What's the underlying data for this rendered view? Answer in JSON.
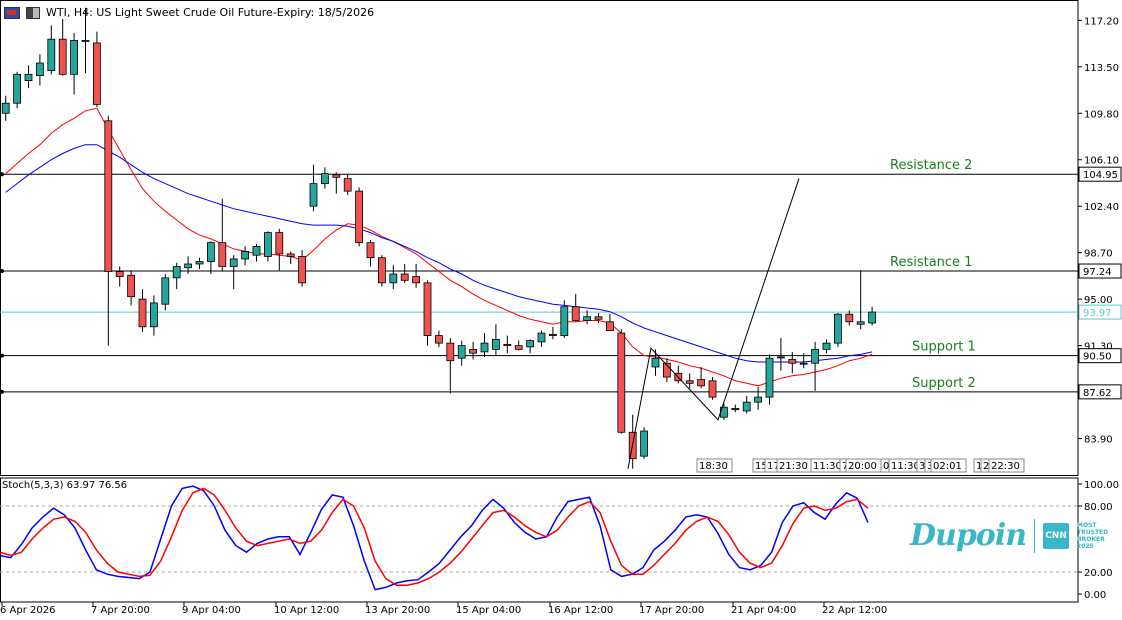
{
  "header": {
    "symbol_title": "WTI, H4:  US Light Sweet Crude Oil Future-Expiry: 18/5/2026"
  },
  "indicator": {
    "stoch_label": "Stoch(5,3,3) 63.97 76.56"
  },
  "brand": {
    "logo_text": "Dupoin",
    "badge_icon": "CNN",
    "badge_lines": [
      "MOST",
      "TRUSTED",
      "BROKER",
      "2025"
    ]
  },
  "colors": {
    "bull": "#26a69a",
    "bear": "#ef5350",
    "ema_fast": "#ff0000",
    "ema_slow": "#0000ff",
    "stoch_k": "#0000ff",
    "stoch_d": "#ff0000",
    "level_label": "#1a7f1a",
    "price_line": "#5fc7d3"
  },
  "chart_data": [
    {
      "type": "candlestick",
      "ylim": [
        81.0,
        118.5
      ],
      "y_ticks": [
        117.2,
        113.5,
        109.8,
        106.1,
        102.4,
        98.7,
        95.0,
        91.3,
        83.9
      ],
      "x_tick_labels": [
        "6 Apr 2026",
        "7 Apr 20:00",
        "9 Apr 04:00",
        "10 Apr 12:00",
        "13 Apr 20:00",
        "15 Apr 04:00",
        "16 Apr 12:00",
        "17 Apr 20:00",
        "21 Apr 04:00",
        "22 Apr 12:00"
      ],
      "current_price": 93.97,
      "levels": [
        {
          "name": "Resistance 2",
          "value": 104.95
        },
        {
          "name": "Resistance 1",
          "value": 97.24
        },
        {
          "name": "Support 1",
          "value": 90.5
        },
        {
          "name": "Support 2",
          "value": 87.62
        }
      ],
      "time_markers": [
        "18:30",
        "15",
        "17",
        "21:30",
        "11:30",
        "7",
        "20:00",
        "0",
        "11:30",
        "3",
        "3",
        "02:01",
        "1",
        "2",
        "22:30"
      ],
      "candles": [
        {
          "o": 109.8,
          "h": 111.2,
          "l": 109.2,
          "c": 110.6
        },
        {
          "o": 110.6,
          "h": 113.1,
          "l": 110.2,
          "c": 112.9
        },
        {
          "o": 112.4,
          "h": 113.6,
          "l": 111.8,
          "c": 112.9
        },
        {
          "o": 112.8,
          "h": 114.5,
          "l": 112.0,
          "c": 113.8
        },
        {
          "o": 113.2,
          "h": 116.8,
          "l": 112.9,
          "c": 115.7
        },
        {
          "o": 115.7,
          "h": 117.3,
          "l": 112.8,
          "c": 112.9
        },
        {
          "o": 112.9,
          "h": 116.2,
          "l": 111.3,
          "c": 115.6
        },
        {
          "o": 115.6,
          "h": 118.2,
          "l": 113.0,
          "c": 115.6
        },
        {
          "o": 115.4,
          "h": 116.3,
          "l": 110.3,
          "c": 110.5
        },
        {
          "o": 109.2,
          "h": 109.6,
          "l": 91.3,
          "c": 97.2
        },
        {
          "o": 97.2,
          "h": 97.6,
          "l": 96.0,
          "c": 96.8
        },
        {
          "o": 96.9,
          "h": 97.3,
          "l": 94.5,
          "c": 95.2
        },
        {
          "o": 95.0,
          "h": 95.8,
          "l": 92.4,
          "c": 92.8
        },
        {
          "o": 92.8,
          "h": 95.3,
          "l": 92.1,
          "c": 94.7
        },
        {
          "o": 94.6,
          "h": 97.0,
          "l": 94.1,
          "c": 96.7
        },
        {
          "o": 96.7,
          "h": 97.9,
          "l": 95.8,
          "c": 97.6
        },
        {
          "o": 97.5,
          "h": 98.4,
          "l": 97.0,
          "c": 97.8
        },
        {
          "o": 97.8,
          "h": 98.3,
          "l": 97.4,
          "c": 98.0
        },
        {
          "o": 98.0,
          "h": 99.6,
          "l": 97.0,
          "c": 99.5
        },
        {
          "o": 99.5,
          "h": 103.0,
          "l": 97.2,
          "c": 97.6
        },
        {
          "o": 97.6,
          "h": 98.5,
          "l": 95.8,
          "c": 98.2
        },
        {
          "o": 98.2,
          "h": 99.2,
          "l": 97.7,
          "c": 98.8
        },
        {
          "o": 98.5,
          "h": 99.4,
          "l": 98.0,
          "c": 99.2
        },
        {
          "o": 98.4,
          "h": 100.4,
          "l": 98.0,
          "c": 100.3
        },
        {
          "o": 100.3,
          "h": 100.6,
          "l": 97.3,
          "c": 98.6
        },
        {
          "o": 98.6,
          "h": 98.8,
          "l": 97.8,
          "c": 98.4
        },
        {
          "o": 98.4,
          "h": 98.9,
          "l": 96.0,
          "c": 96.3
        },
        {
          "o": 102.4,
          "h": 105.7,
          "l": 102.0,
          "c": 104.2
        },
        {
          "o": 104.2,
          "h": 105.5,
          "l": 103.8,
          "c": 105.0
        },
        {
          "o": 104.9,
          "h": 105.1,
          "l": 103.4,
          "c": 104.7
        },
        {
          "o": 104.6,
          "h": 104.9,
          "l": 103.3,
          "c": 103.6
        },
        {
          "o": 103.6,
          "h": 103.9,
          "l": 99.2,
          "c": 99.5
        },
        {
          "o": 99.5,
          "h": 99.7,
          "l": 97.6,
          "c": 98.3
        },
        {
          "o": 98.3,
          "h": 98.5,
          "l": 96.0,
          "c": 96.3
        },
        {
          "o": 96.3,
          "h": 97.7,
          "l": 95.8,
          "c": 97.0
        },
        {
          "o": 97.0,
          "h": 97.8,
          "l": 96.3,
          "c": 96.5
        },
        {
          "o": 96.8,
          "h": 97.8,
          "l": 95.9,
          "c": 96.3
        },
        {
          "o": 96.3,
          "h": 96.5,
          "l": 91.3,
          "c": 92.1
        },
        {
          "o": 92.1,
          "h": 92.5,
          "l": 91.2,
          "c": 91.5
        },
        {
          "o": 91.5,
          "h": 91.9,
          "l": 87.5,
          "c": 90.1
        },
        {
          "o": 90.3,
          "h": 91.7,
          "l": 89.7,
          "c": 91.3
        },
        {
          "o": 91.0,
          "h": 91.6,
          "l": 90.2,
          "c": 90.7
        },
        {
          "o": 90.8,
          "h": 92.3,
          "l": 90.4,
          "c": 91.5
        },
        {
          "o": 91.0,
          "h": 93.0,
          "l": 90.5,
          "c": 91.8
        },
        {
          "o": 91.4,
          "h": 92.1,
          "l": 90.7,
          "c": 91.3
        },
        {
          "o": 91.3,
          "h": 91.7,
          "l": 90.9,
          "c": 91.0
        },
        {
          "o": 91.2,
          "h": 91.8,
          "l": 90.7,
          "c": 91.7
        },
        {
          "o": 91.6,
          "h": 92.5,
          "l": 91.2,
          "c": 92.3
        },
        {
          "o": 92.2,
          "h": 92.8,
          "l": 91.8,
          "c": 92.1
        },
        {
          "o": 92.1,
          "h": 94.9,
          "l": 91.9,
          "c": 94.4
        },
        {
          "o": 94.4,
          "h": 95.4,
          "l": 93.2,
          "c": 93.3
        },
        {
          "o": 93.3,
          "h": 94.1,
          "l": 93.0,
          "c": 93.6
        },
        {
          "o": 93.6,
          "h": 93.9,
          "l": 93.1,
          "c": 93.4
        },
        {
          "o": 93.2,
          "h": 93.8,
          "l": 92.5,
          "c": 92.5
        },
        {
          "o": 92.3,
          "h": 92.6,
          "l": 84.3,
          "c": 84.4
        },
        {
          "o": 84.4,
          "h": 85.8,
          "l": 81.5,
          "c": 82.3
        },
        {
          "o": 82.5,
          "h": 84.8,
          "l": 82.3,
          "c": 84.5
        },
        {
          "o": 89.6,
          "h": 91.0,
          "l": 88.9,
          "c": 90.3
        },
        {
          "o": 89.9,
          "h": 90.3,
          "l": 88.4,
          "c": 88.8
        },
        {
          "o": 89.1,
          "h": 89.7,
          "l": 88.3,
          "c": 88.5
        },
        {
          "o": 88.5,
          "h": 89.1,
          "l": 87.9,
          "c": 88.3
        },
        {
          "o": 88.6,
          "h": 89.6,
          "l": 87.9,
          "c": 88.1
        },
        {
          "o": 88.5,
          "h": 88.8,
          "l": 87.0,
          "c": 87.2
        },
        {
          "o": 85.6,
          "h": 86.7,
          "l": 85.4,
          "c": 86.4
        },
        {
          "o": 86.3,
          "h": 86.6,
          "l": 86.0,
          "c": 86.2
        },
        {
          "o": 86.1,
          "h": 87.3,
          "l": 85.9,
          "c": 86.8
        },
        {
          "o": 86.8,
          "h": 88.0,
          "l": 86.2,
          "c": 87.2
        },
        {
          "o": 87.2,
          "h": 90.6,
          "l": 86.6,
          "c": 90.3
        },
        {
          "o": 90.4,
          "h": 91.9,
          "l": 89.3,
          "c": 90.4
        },
        {
          "o": 90.2,
          "h": 90.8,
          "l": 89.1,
          "c": 89.9
        },
        {
          "o": 89.9,
          "h": 90.7,
          "l": 89.5,
          "c": 89.9
        },
        {
          "o": 89.9,
          "h": 91.6,
          "l": 87.7,
          "c": 91.0
        },
        {
          "o": 91.0,
          "h": 91.8,
          "l": 90.7,
          "c": 91.5
        },
        {
          "o": 91.5,
          "h": 93.9,
          "l": 91.2,
          "c": 93.8
        },
        {
          "o": 93.8,
          "h": 94.1,
          "l": 92.9,
          "c": 93.2
        },
        {
          "o": 93.0,
          "h": 97.3,
          "l": 92.6,
          "c": 93.2
        },
        {
          "o": 93.1,
          "h": 94.4,
          "l": 92.9,
          "c": 93.97
        }
      ],
      "ema_fast": [
        105.0,
        105.8,
        106.6,
        107.3,
        108.2,
        108.9,
        109.4,
        110.0,
        110.2,
        108.5,
        106.9,
        105.3,
        103.8,
        102.8,
        102.0,
        101.3,
        100.6,
        100.1,
        99.8,
        99.4,
        99.0,
        98.8,
        98.6,
        98.6,
        98.5,
        98.4,
        98.1,
        98.9,
        99.8,
        100.5,
        101.0,
        100.9,
        100.5,
        100.0,
        99.6,
        99.1,
        98.6,
        97.9,
        97.2,
        96.5,
        96.0,
        95.4,
        94.9,
        94.5,
        94.1,
        93.7,
        93.4,
        93.2,
        93.0,
        93.2,
        93.2,
        93.3,
        93.3,
        93.1,
        92.3,
        91.2,
        90.5,
        90.4,
        90.2,
        90.0,
        89.7,
        89.5,
        89.2,
        88.9,
        88.5,
        88.3,
        88.1,
        88.4,
        88.7,
        88.9,
        89.0,
        89.2,
        89.4,
        89.7,
        90.1,
        90.3,
        90.6
      ],
      "ema_slow": [
        103.5,
        104.2,
        104.9,
        105.5,
        106.1,
        106.6,
        107.0,
        107.3,
        107.3,
        106.8,
        106.3,
        105.7,
        105.1,
        104.6,
        104.2,
        103.8,
        103.4,
        103.1,
        102.8,
        102.5,
        102.2,
        102.0,
        101.8,
        101.6,
        101.4,
        101.2,
        101.0,
        100.9,
        100.9,
        100.9,
        100.8,
        100.6,
        100.3,
        99.9,
        99.6,
        99.2,
        98.8,
        98.3,
        97.9,
        97.4,
        97.0,
        96.5,
        96.1,
        95.8,
        95.5,
        95.2,
        95.0,
        94.8,
        94.6,
        94.5,
        94.4,
        94.3,
        94.2,
        94.0,
        93.6,
        93.1,
        92.7,
        92.4,
        92.1,
        91.8,
        91.5,
        91.2,
        90.9,
        90.6,
        90.3,
        90.1,
        90.0,
        90.0,
        90.0,
        90.0,
        90.0,
        90.1,
        90.2,
        90.3,
        90.5,
        90.6,
        90.8
      ]
    },
    {
      "type": "line",
      "name": "Stoch(5,3,3)",
      "ylim": [
        0,
        100
      ],
      "y_ticks": [
        100.0,
        80.0,
        20.0,
        0.0
      ],
      "series": [
        {
          "name": "%K",
          "values": [
            35,
            33,
            45,
            60,
            70,
            78,
            72,
            60,
            40,
            22,
            18,
            16,
            15,
            14,
            20,
            50,
            80,
            96,
            98,
            94,
            80,
            58,
            44,
            38,
            46,
            50,
            52,
            52,
            36,
            56,
            77,
            90,
            88,
            62,
            30,
            4,
            6,
            10,
            12,
            13,
            20,
            28,
            40,
            52,
            62,
            76,
            86,
            78,
            65,
            56,
            50,
            52,
            70,
            84,
            86,
            88,
            62,
            22,
            16,
            18,
            24,
            40,
            48,
            58,
            70,
            72,
            70,
            55,
            36,
            24,
            22,
            26,
            38,
            65,
            80,
            83,
            74,
            68,
            82,
            92,
            87,
            65
          ]
        },
        {
          "name": "%D",
          "values": [
            38,
            35,
            38,
            50,
            60,
            68,
            70,
            66,
            56,
            40,
            28,
            20,
            18,
            16,
            17,
            30,
            52,
            76,
            92,
            96,
            90,
            76,
            60,
            48,
            44,
            46,
            48,
            50,
            46,
            48,
            58,
            74,
            86,
            80,
            60,
            30,
            14,
            8,
            8,
            10,
            14,
            20,
            28,
            38,
            50,
            62,
            74,
            76,
            70,
            62,
            56,
            52,
            58,
            70,
            80,
            84,
            74,
            48,
            26,
            18,
            18,
            26,
            36,
            46,
            58,
            66,
            70,
            66,
            54,
            38,
            28,
            24,
            28,
            44,
            64,
            78,
            80,
            76,
            78,
            84,
            86,
            78
          ]
        }
      ]
    }
  ]
}
